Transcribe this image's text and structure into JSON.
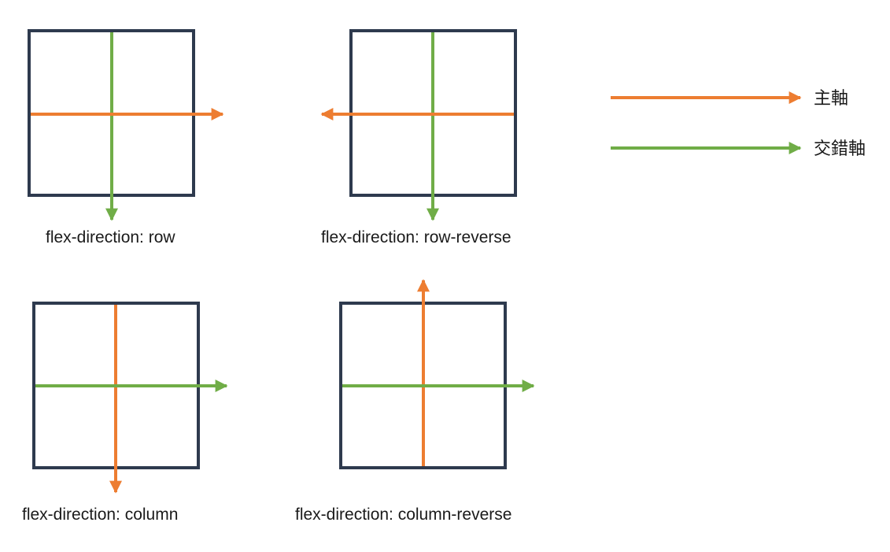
{
  "colors": {
    "main_axis": "#ed7d31",
    "cross_axis": "#70ad47",
    "frame": "#2e3a4e"
  },
  "legend": {
    "main_axis_label": "主軸",
    "cross_axis_label": "交錯軸"
  },
  "panels": [
    {
      "key": "row",
      "caption": "flex-direction: row",
      "main_direction": "right",
      "cross_direction": "down"
    },
    {
      "key": "row-reverse",
      "caption": "flex-direction: row-reverse",
      "main_direction": "left",
      "cross_direction": "down"
    },
    {
      "key": "column",
      "caption": "flex-direction: column",
      "main_direction": "down",
      "cross_direction": "right"
    },
    {
      "key": "column-reverse",
      "caption": "flex-direction: column-reverse",
      "main_direction": "up",
      "cross_direction": "right"
    }
  ]
}
